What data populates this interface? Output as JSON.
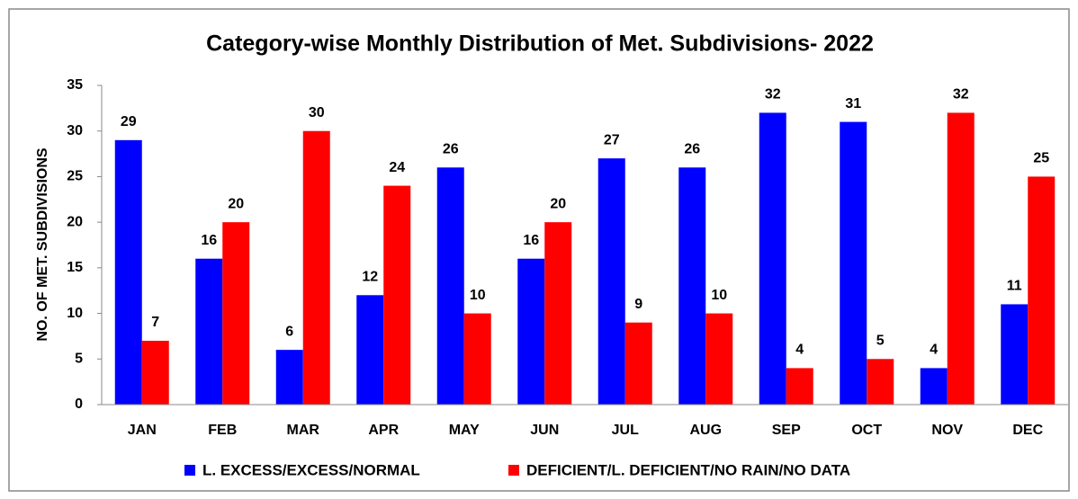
{
  "chart_data": {
    "type": "bar",
    "title": "Category-wise Monthly Distribution of Met. Subdivisions- 2022",
    "y_label": "NO. OF MET. SUBDIVISIONS",
    "categories": [
      "JAN",
      "FEB",
      "MAR",
      "APR",
      "MAY",
      "JUN",
      "JUL",
      "AUG",
      "SEP",
      "OCT",
      "NOV",
      "DEC"
    ],
    "series": [
      {
        "name": "L. EXCESS/EXCESS/NORMAL",
        "color": "#0000ff",
        "values": [
          29,
          16,
          6,
          12,
          26,
          16,
          27,
          26,
          32,
          31,
          4,
          11
        ]
      },
      {
        "name": "DEFICIENT/L. DEFICIENT/NO RAIN/NO DATA",
        "color": "#ff0000",
        "values": [
          7,
          20,
          30,
          24,
          10,
          20,
          9,
          10,
          4,
          5,
          32,
          25
        ]
      }
    ],
    "ylim": [
      0,
      35
    ],
    "yticks": [
      0,
      5,
      10,
      15,
      20,
      25,
      30,
      35
    ],
    "grid": false,
    "legend": "bottom"
  }
}
